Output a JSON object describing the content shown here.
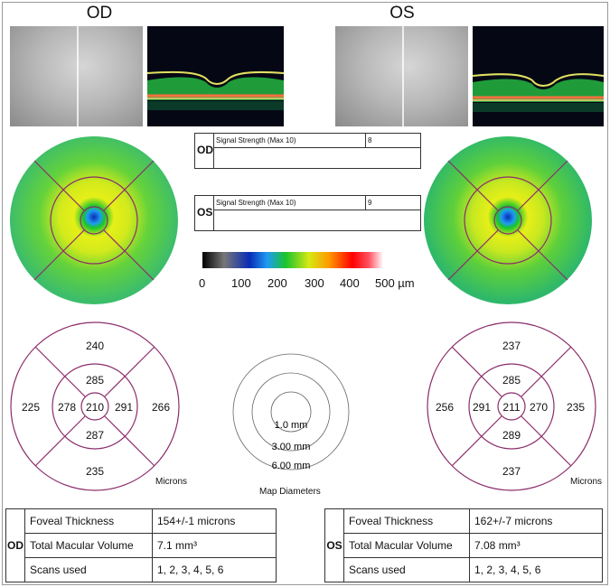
{
  "eyes": {
    "od": {
      "title": "OD"
    },
    "os": {
      "title": "OS"
    }
  },
  "signal_strength": {
    "od": {
      "eye": "OD",
      "label": "Signal Strength (Max 10)",
      "value": "8"
    },
    "os": {
      "eye": "OS",
      "label": "Signal Strength (Max 10)",
      "value": "9"
    }
  },
  "color_scale": {
    "ticks": [
      "0",
      "100",
      "200",
      "300",
      "400",
      "500 µm"
    ],
    "colors": [
      "#000000",
      "#777777",
      "#0a2cb5",
      "#1f9cf2",
      "#19c42d",
      "#d7e814",
      "#ff9a00",
      "#ff0000",
      "#ffffff"
    ]
  },
  "od_sectors": {
    "outer_superior": "240",
    "outer_temporal": "225",
    "outer_nasal": "266",
    "outer_inferior": "235",
    "inner_superior": "285",
    "inner_temporal": "278",
    "inner_nasal": "291",
    "inner_inferior": "287",
    "center": "210",
    "units": "Microns"
  },
  "os_sectors": {
    "outer_superior": "237",
    "outer_nasal": "256",
    "outer_temporal": "235",
    "outer_inferior": "237",
    "inner_superior": "285",
    "inner_nasal": "291",
    "inner_temporal": "270",
    "inner_inferior": "289",
    "center": "211",
    "units": "Microns"
  },
  "map_diameters": {
    "inner": "1.0 mm",
    "middle": "3.00 mm",
    "outer": "6.00 mm",
    "caption": "Map Diameters"
  },
  "summary": {
    "od": {
      "eye": "OD",
      "rows": [
        {
          "label": "Foveal Thickness",
          "value": "154+/-1 microns"
        },
        {
          "label": "Total Macular Volume",
          "value": "7.1 mm³"
        },
        {
          "label": "Scans used",
          "value": "1, 2, 3, 4, 5, 6"
        }
      ]
    },
    "os": {
      "eye": "OS",
      "rows": [
        {
          "label": "Foveal Thickness",
          "value": "162+/-7 microns"
        },
        {
          "label": "Total Macular Volume",
          "value": "7.08 mm³"
        },
        {
          "label": "Scans used",
          "value": "1, 2, 3, 4, 5, 6"
        }
      ]
    }
  }
}
